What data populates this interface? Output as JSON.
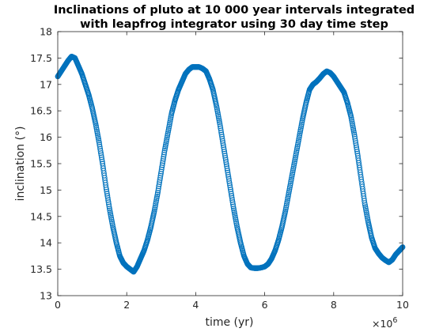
{
  "chart_data": {
    "type": "scatter",
    "title_lines": [
      "Inclinations of pluto at 10 000 year intervals integrated",
      "with leapfrog integrator using 30 day time step"
    ],
    "xlabel": "time (yr)",
    "ylabel": "inclination (°)",
    "x_exponent_base": "×10",
    "x_exponent_power": "6",
    "xlim": [
      0,
      10
    ],
    "ylim": [
      13,
      18
    ],
    "x_ticks": [
      0,
      2,
      4,
      6,
      8,
      10
    ],
    "y_ticks": [
      13,
      13.5,
      14,
      14.5,
      15,
      15.5,
      16,
      16.5,
      17,
      17.5,
      18
    ],
    "x_tick_labels": [
      "0",
      "2",
      "4",
      "6",
      "8",
      "10"
    ],
    "y_tick_labels": [
      "13",
      "13.5",
      "14",
      "14.5",
      "15",
      "15.5",
      "16",
      "16.5",
      "17",
      "17.5",
      "18"
    ],
    "grid": false,
    "legend": "none",
    "marker": "circle",
    "marker_color": "#0072BD",
    "x_units_note": "x values in units of 10^6 years",
    "series": [
      {
        "x": [
          0.0,
          0.1,
          0.2,
          0.3,
          0.4,
          0.5,
          0.6,
          0.7,
          0.8,
          0.9,
          1.0,
          1.1,
          1.2,
          1.3,
          1.4,
          1.5,
          1.6,
          1.7,
          1.8,
          1.9,
          2.0,
          2.1,
          2.2,
          2.3,
          2.4,
          2.5,
          2.6,
          2.7,
          2.8,
          2.9,
          3.0,
          3.1,
          3.2,
          3.3,
          3.4,
          3.5,
          3.6,
          3.7,
          3.8,
          3.9,
          4.0,
          4.1,
          4.2,
          4.3,
          4.4,
          4.5,
          4.6,
          4.7,
          4.8,
          4.9,
          5.0,
          5.1,
          5.2,
          5.3,
          5.4,
          5.5,
          5.6,
          5.7,
          5.8,
          5.9,
          6.0,
          6.1,
          6.2,
          6.3,
          6.4,
          6.5,
          6.6,
          6.7,
          6.8,
          6.9,
          7.0,
          7.1,
          7.2,
          7.3,
          7.4,
          7.5,
          7.6,
          7.7,
          7.8,
          7.9,
          8.0,
          8.1,
          8.2,
          8.3,
          8.4,
          8.5,
          8.6,
          8.7,
          8.8,
          8.9,
          9.0,
          9.1,
          9.2,
          9.3,
          9.4,
          9.5,
          9.6,
          9.7,
          9.8,
          9.9,
          10.0
        ],
        "y": [
          17.15,
          17.25,
          17.35,
          17.45,
          17.53,
          17.5,
          17.35,
          17.2,
          17.0,
          16.8,
          16.55,
          16.25,
          15.9,
          15.5,
          15.05,
          14.65,
          14.3,
          14.0,
          13.75,
          13.62,
          13.55,
          13.5,
          13.45,
          13.55,
          13.7,
          13.85,
          14.05,
          14.3,
          14.6,
          14.95,
          15.35,
          15.75,
          16.1,
          16.45,
          16.7,
          16.9,
          17.05,
          17.2,
          17.28,
          17.33,
          17.33,
          17.33,
          17.3,
          17.25,
          17.1,
          16.9,
          16.6,
          16.25,
          15.85,
          15.45,
          15.05,
          14.65,
          14.3,
          14.0,
          13.75,
          13.6,
          13.53,
          13.52,
          13.52,
          13.53,
          13.55,
          13.6,
          13.7,
          13.85,
          14.05,
          14.3,
          14.6,
          14.95,
          15.3,
          15.65,
          16.0,
          16.35,
          16.65,
          16.9,
          17.0,
          17.05,
          17.12,
          17.2,
          17.25,
          17.22,
          17.15,
          17.05,
          16.95,
          16.85,
          16.65,
          16.4,
          16.05,
          15.65,
          15.2,
          14.75,
          14.4,
          14.1,
          13.9,
          13.8,
          13.72,
          13.67,
          13.63,
          13.68,
          13.78,
          13.85,
          13.92
        ]
      }
    ]
  }
}
